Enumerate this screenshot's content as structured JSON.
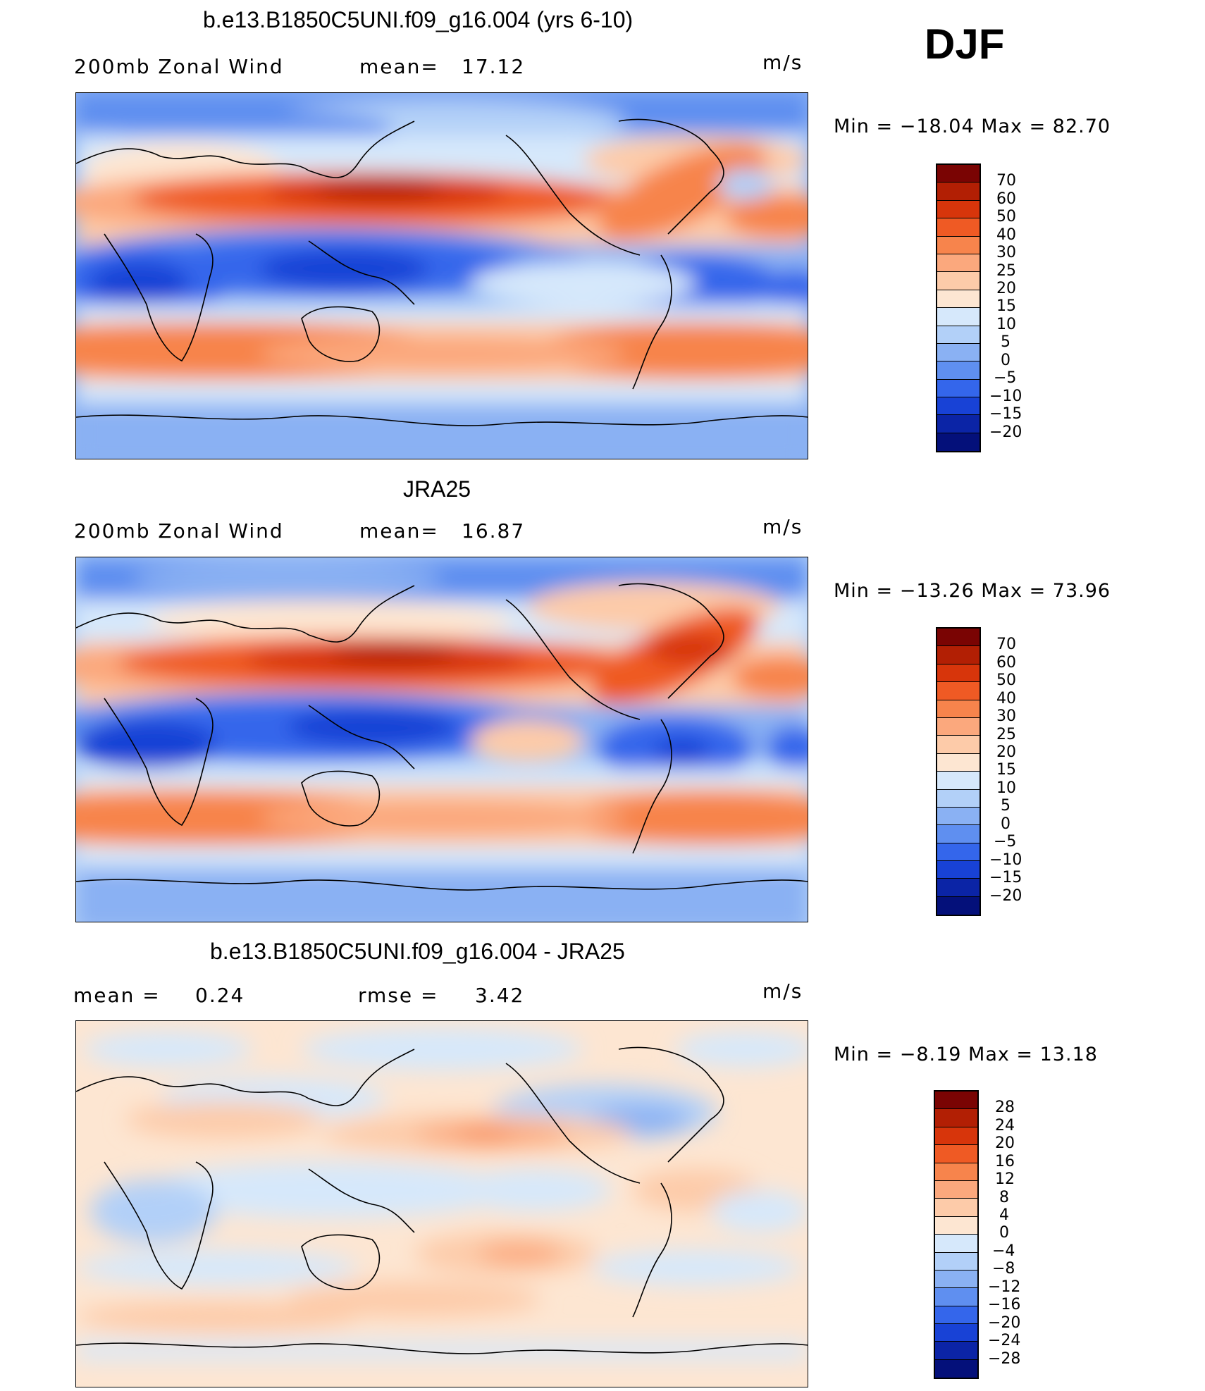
{
  "season": "DJF",
  "units_label": "m/s",
  "panels": [
    {
      "title": "b.e13.B1850C5UNI.f09_g16.004 (yrs 6-10)",
      "field": "200mb Zonal Wind",
      "stat1_label": "mean=",
      "stat1_value": "17.12",
      "units": "m/s",
      "min_text": "Min  =  −18.04  Max  =    82.70",
      "colorbar_labels": [
        "70",
        "60",
        "50",
        "40",
        "30",
        "25",
        "20",
        "15",
        "10",
        "5",
        "0",
        "−5",
        "−10",
        "−15",
        "−20"
      ]
    },
    {
      "title": "JRA25",
      "field": "200mb Zonal Wind",
      "stat1_label": "mean=",
      "stat1_value": "16.87",
      "units": "m/s",
      "min_text": "Min  =  −13.26  Max  =    73.96",
      "colorbar_labels": [
        "70",
        "60",
        "50",
        "40",
        "30",
        "25",
        "20",
        "15",
        "10",
        "5",
        "0",
        "−5",
        "−10",
        "−15",
        "−20"
      ]
    },
    {
      "title": "b.e13.B1850C5UNI.f09_g16.004 - JRA25",
      "stat1_label": "mean  =",
      "stat1_value": "0.24",
      "stat2_label": "rmse  =",
      "stat2_value": "3.42",
      "units": "m/s",
      "min_text": "Min  =    −8.19  Max  =    13.18",
      "colorbar_labels": [
        "28",
        "24",
        "20",
        "16",
        "12",
        "8",
        "4",
        "0",
        "−4",
        "−8",
        "−12",
        "−16",
        "−20",
        "−24",
        "−28"
      ]
    }
  ],
  "colorbar_colors": {
    "field": [
      "#7a0403",
      "#b21f04",
      "#d7350b",
      "#ef5a24",
      "#f7844c",
      "#fba87d",
      "#fdcba9",
      "#fde6d2",
      "#d6e8fb",
      "#b2d0f8",
      "#8ab1f3",
      "#5f8ff0",
      "#3466eb",
      "#1842d6",
      "#0b24a6",
      "#04107a"
    ],
    "diff": [
      "#7a0403",
      "#b21f04",
      "#d7350b",
      "#ef5a24",
      "#f7844c",
      "#fba87d",
      "#fdcba9",
      "#fde6d2",
      "#d6e8fb",
      "#b2d0f8",
      "#8ab1f3",
      "#5f8ff0",
      "#3466eb",
      "#1842d6",
      "#0b24a6",
      "#04107a"
    ]
  }
}
